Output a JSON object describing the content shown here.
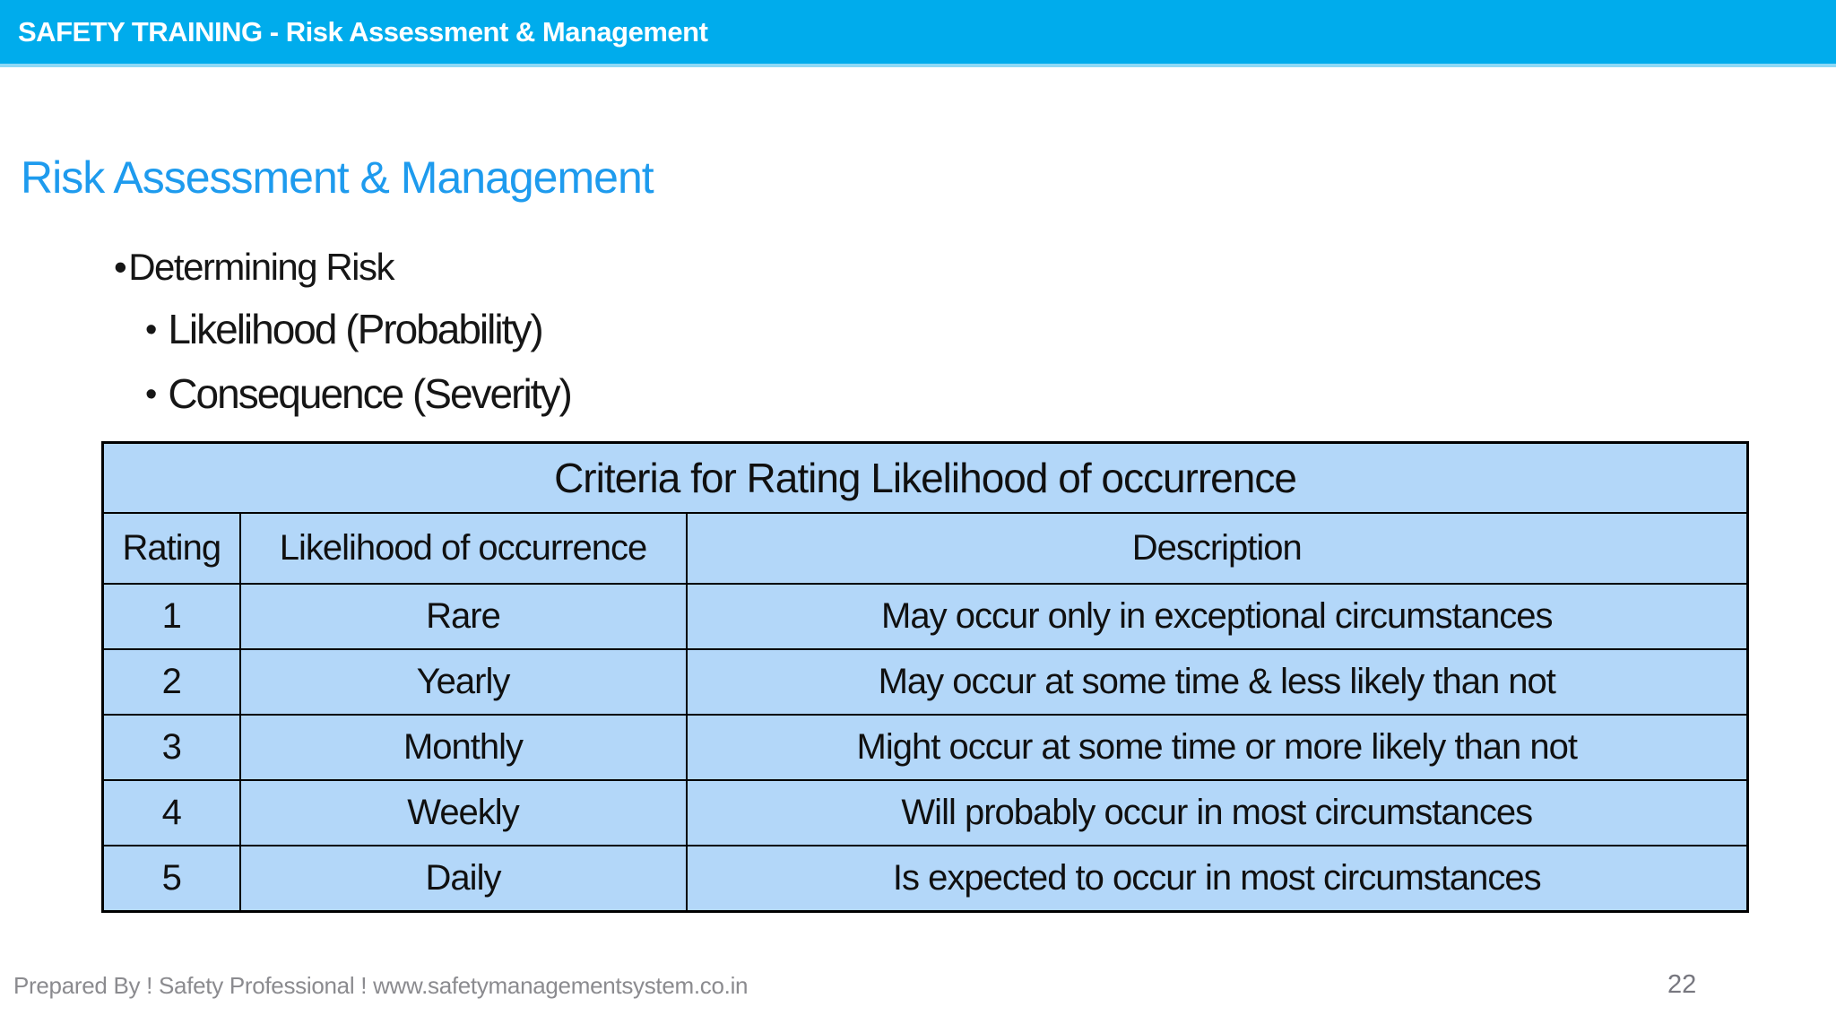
{
  "topbar": {
    "title": "SAFETY TRAINING - Risk Assessment & Management",
    "bg_color": "#00ACEC",
    "text_color": "#FFFFFF"
  },
  "slide": {
    "title": "Risk Assessment & Management",
    "title_color": "#1E9BEE",
    "bullets": [
      {
        "level": 1,
        "marker": "•",
        "text": "Determining Risk"
      },
      {
        "level": 2,
        "marker": "•",
        "text": "Likelihood (Probability)"
      },
      {
        "level": 2,
        "marker": "•",
        "text": "Consequence (Severity)"
      }
    ]
  },
  "table": {
    "caption": "Criteria for Rating Likelihood of occurrence",
    "bg_color": "#B3D7F9",
    "border_color": "#000000",
    "columns": [
      "Rating",
      "Likelihood of occurrence",
      "Description"
    ],
    "rows": [
      [
        "1",
        "Rare",
        "May occur only in exceptional circumstances"
      ],
      [
        "2",
        "Yearly",
        "May occur at some time & less likely than not"
      ],
      [
        "3",
        "Monthly",
        "Might occur at some time or more likely than not"
      ],
      [
        "4",
        "Weekly",
        "Will probably occur in most circumstances"
      ],
      [
        "5",
        "Daily",
        "Is expected to occur in most circumstances"
      ]
    ]
  },
  "footer": {
    "prepared_by": "Prepared By ! Safety Professional ! www.safetymanagementsystem.co.in",
    "page_number": "22"
  }
}
